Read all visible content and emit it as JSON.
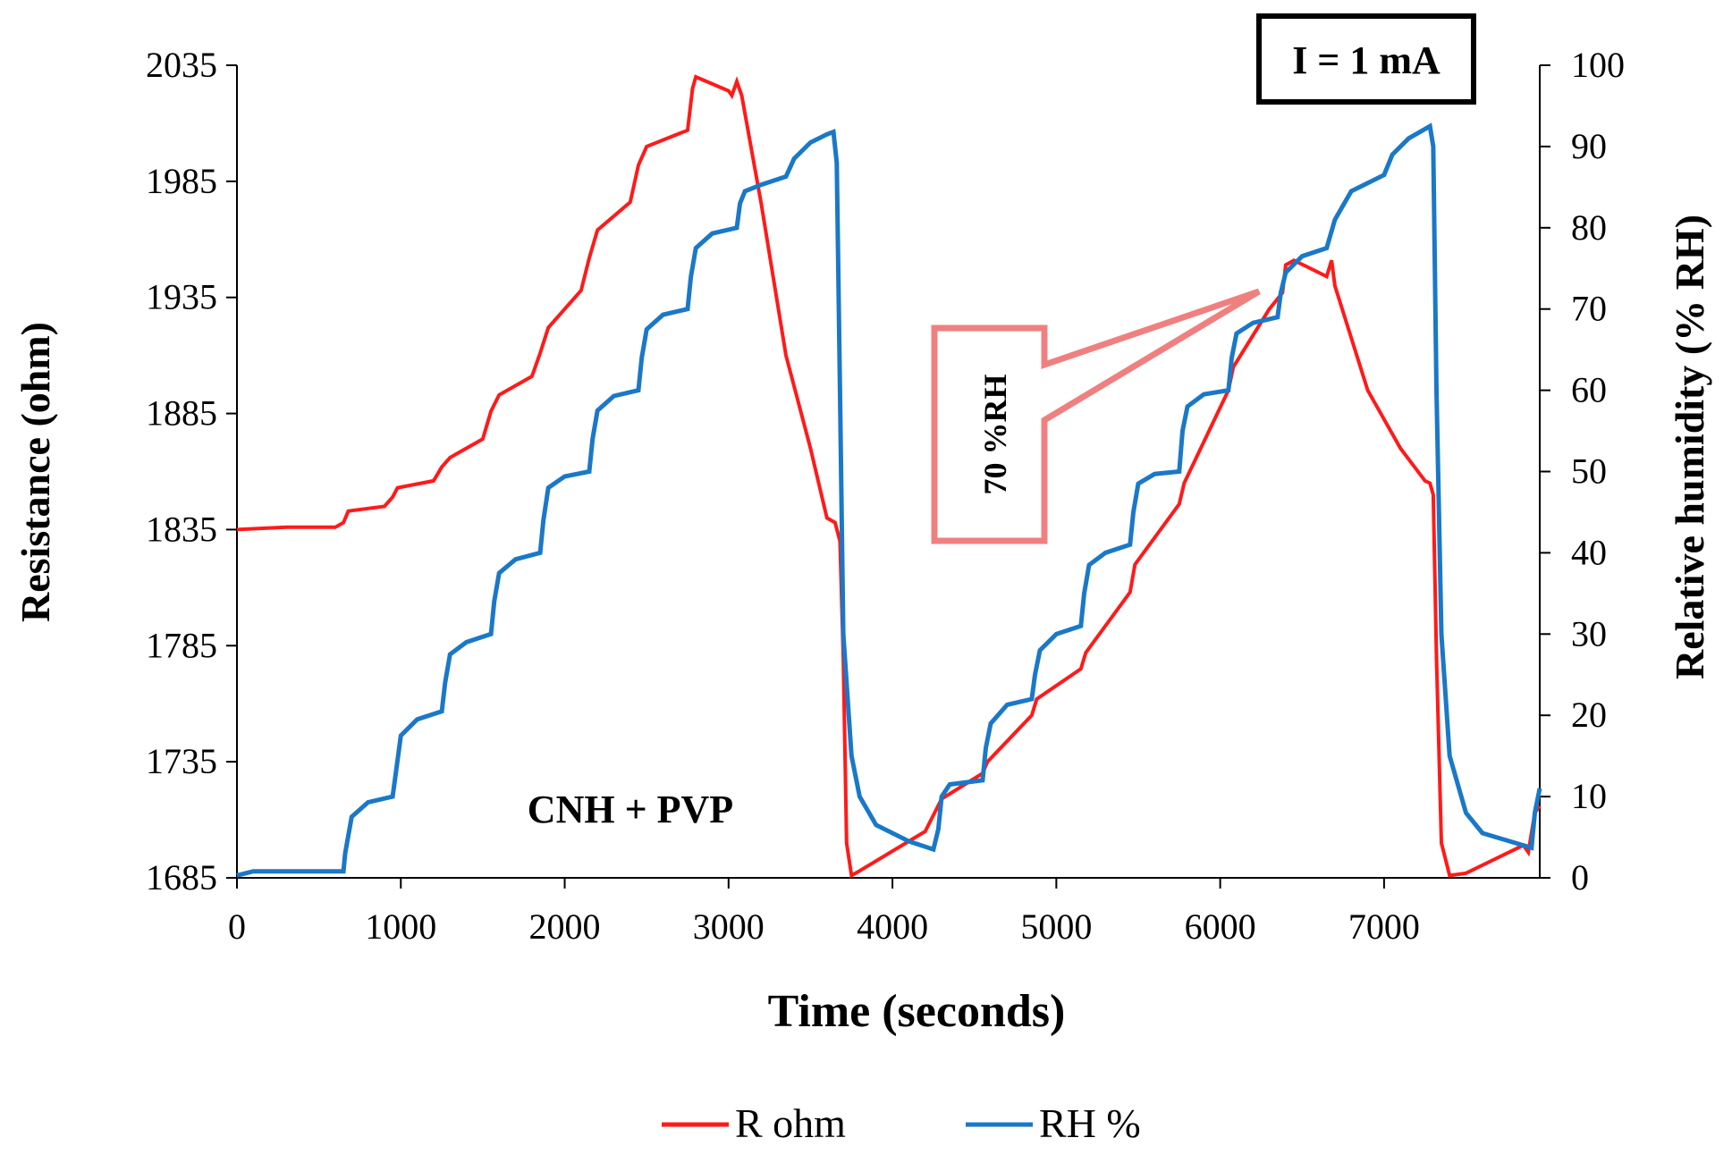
{
  "chart_data": {
    "type": "line",
    "title": "",
    "xlabel": "Time (seconds)",
    "ylabel_left": "Resistance (ohm)",
    "ylabel_right": "Relative humidity (% RH)",
    "xlim": [
      0,
      7950
    ],
    "ylim_left": [
      1685,
      2035
    ],
    "ylim_right": [
      0,
      100
    ],
    "x_ticks": [
      0,
      1000,
      2000,
      3000,
      4000,
      5000,
      6000,
      7000
    ],
    "y_left_ticks": [
      1685,
      1735,
      1785,
      1835,
      1885,
      1935,
      1985,
      2035
    ],
    "y_right_ticks": [
      0,
      10,
      20,
      30,
      40,
      50,
      60,
      70,
      80,
      90,
      100
    ],
    "legend": [
      "R ohm",
      "RH %"
    ],
    "legend_position": "bottom-center",
    "annotations": {
      "current": "I = 1 mA",
      "sample": "CNH + PVP",
      "callout": "70 %RH"
    },
    "colors": {
      "R": "#ff1a1a",
      "RH": "#1a78c8",
      "callout": "#f08080"
    },
    "series": [
      {
        "name": "R ohm",
        "axis": "left",
        "points": [
          [
            0,
            1835
          ],
          [
            300,
            1836
          ],
          [
            600,
            1836
          ],
          [
            650,
            1838
          ],
          [
            680,
            1843
          ],
          [
            900,
            1845
          ],
          [
            950,
            1849
          ],
          [
            980,
            1853
          ],
          [
            1200,
            1856
          ],
          [
            1250,
            1862
          ],
          [
            1300,
            1866
          ],
          [
            1500,
            1874
          ],
          [
            1550,
            1886
          ],
          [
            1600,
            1893
          ],
          [
            1800,
            1901
          ],
          [
            1850,
            1911
          ],
          [
            1900,
            1922
          ],
          [
            2100,
            1938
          ],
          [
            2150,
            1952
          ],
          [
            2200,
            1964
          ],
          [
            2400,
            1976
          ],
          [
            2450,
            1992
          ],
          [
            2500,
            2000
          ],
          [
            2750,
            2007
          ],
          [
            2780,
            2025
          ],
          [
            2800,
            2030
          ],
          [
            3000,
            2024
          ],
          [
            3020,
            2022
          ],
          [
            3050,
            2028
          ],
          [
            3080,
            2022
          ],
          [
            3200,
            1975
          ],
          [
            3350,
            1910
          ],
          [
            3500,
            1870
          ],
          [
            3600,
            1840
          ],
          [
            3650,
            1838
          ],
          [
            3680,
            1830
          ],
          [
            3700,
            1780
          ],
          [
            3720,
            1700
          ],
          [
            3750,
            1686
          ],
          [
            3800,
            1688
          ],
          [
            4200,
            1705
          ],
          [
            4250,
            1712
          ],
          [
            4300,
            1719
          ],
          [
            4550,
            1730
          ],
          [
            4580,
            1735
          ],
          [
            4850,
            1755
          ],
          [
            4880,
            1762
          ],
          [
            5150,
            1775
          ],
          [
            5180,
            1782
          ],
          [
            5450,
            1808
          ],
          [
            5480,
            1820
          ],
          [
            5750,
            1846
          ],
          [
            5780,
            1855
          ],
          [
            6050,
            1895
          ],
          [
            6080,
            1905
          ],
          [
            6300,
            1930
          ],
          [
            6380,
            1937
          ],
          [
            6400,
            1949
          ],
          [
            6450,
            1951
          ],
          [
            6650,
            1944
          ],
          [
            6680,
            1951
          ],
          [
            6700,
            1940
          ],
          [
            6900,
            1895
          ],
          [
            7100,
            1870
          ],
          [
            7250,
            1856
          ],
          [
            7280,
            1855
          ],
          [
            7300,
            1850
          ],
          [
            7320,
            1780
          ],
          [
            7350,
            1700
          ],
          [
            7400,
            1686
          ],
          [
            7500,
            1687
          ],
          [
            7850,
            1699
          ],
          [
            7880,
            1696
          ],
          [
            7920,
            1713
          ],
          [
            7950,
            1716
          ]
        ]
      },
      {
        "name": "RH %",
        "axis": "right",
        "points": [
          [
            0,
            0.3
          ],
          [
            100,
            0.8
          ],
          [
            650,
            0.8
          ],
          [
            660,
            3
          ],
          [
            700,
            7.5
          ],
          [
            800,
            9.3
          ],
          [
            950,
            10
          ],
          [
            970,
            13
          ],
          [
            1000,
            17.5
          ],
          [
            1100,
            19.5
          ],
          [
            1250,
            20.5
          ],
          [
            1270,
            24
          ],
          [
            1300,
            27.5
          ],
          [
            1400,
            29
          ],
          [
            1550,
            30
          ],
          [
            1570,
            34
          ],
          [
            1600,
            37.5
          ],
          [
            1700,
            39.2
          ],
          [
            1850,
            40
          ],
          [
            1870,
            44
          ],
          [
            1900,
            48
          ],
          [
            2000,
            49.4
          ],
          [
            2150,
            50
          ],
          [
            2170,
            54
          ],
          [
            2200,
            57.5
          ],
          [
            2300,
            59.3
          ],
          [
            2450,
            60
          ],
          [
            2470,
            64
          ],
          [
            2500,
            67.5
          ],
          [
            2600,
            69.3
          ],
          [
            2750,
            70
          ],
          [
            2770,
            74
          ],
          [
            2800,
            77.5
          ],
          [
            2900,
            79.3
          ],
          [
            3050,
            80
          ],
          [
            3070,
            83
          ],
          [
            3100,
            84.5
          ],
          [
            3200,
            85.3
          ],
          [
            3350,
            86.3
          ],
          [
            3400,
            88.5
          ],
          [
            3500,
            90.5
          ],
          [
            3600,
            91.5
          ],
          [
            3640,
            91.8
          ],
          [
            3660,
            88
          ],
          [
            3680,
            60
          ],
          [
            3700,
            30
          ],
          [
            3750,
            15
          ],
          [
            3800,
            10
          ],
          [
            3900,
            6.5
          ],
          [
            4100,
            4.5
          ],
          [
            4250,
            3.5
          ],
          [
            4280,
            6
          ],
          [
            4300,
            10
          ],
          [
            4350,
            11.5
          ],
          [
            4550,
            12
          ],
          [
            4570,
            16
          ],
          [
            4600,
            19
          ],
          [
            4700,
            21.3
          ],
          [
            4850,
            22
          ],
          [
            4870,
            25
          ],
          [
            4900,
            28
          ],
          [
            5000,
            30
          ],
          [
            5150,
            31
          ],
          [
            5170,
            35
          ],
          [
            5200,
            38.5
          ],
          [
            5300,
            40
          ],
          [
            5450,
            41
          ],
          [
            5470,
            45
          ],
          [
            5500,
            48.5
          ],
          [
            5600,
            49.7
          ],
          [
            5750,
            50
          ],
          [
            5770,
            55
          ],
          [
            5800,
            58
          ],
          [
            5900,
            59.5
          ],
          [
            6050,
            60
          ],
          [
            6070,
            64
          ],
          [
            6100,
            67
          ],
          [
            6200,
            68.3
          ],
          [
            6350,
            69
          ],
          [
            6370,
            72
          ],
          [
            6400,
            74.5
          ],
          [
            6500,
            76.5
          ],
          [
            6650,
            77.5
          ],
          [
            6700,
            81
          ],
          [
            6800,
            84.5
          ],
          [
            7000,
            86.5
          ],
          [
            7050,
            89
          ],
          [
            7150,
            91
          ],
          [
            7280,
            92.5
          ],
          [
            7300,
            90
          ],
          [
            7320,
            60
          ],
          [
            7350,
            30
          ],
          [
            7400,
            15
          ],
          [
            7500,
            8
          ],
          [
            7600,
            5.5
          ],
          [
            7900,
            3.7
          ],
          [
            7920,
            8
          ],
          [
            7950,
            11
          ]
        ]
      }
    ]
  }
}
